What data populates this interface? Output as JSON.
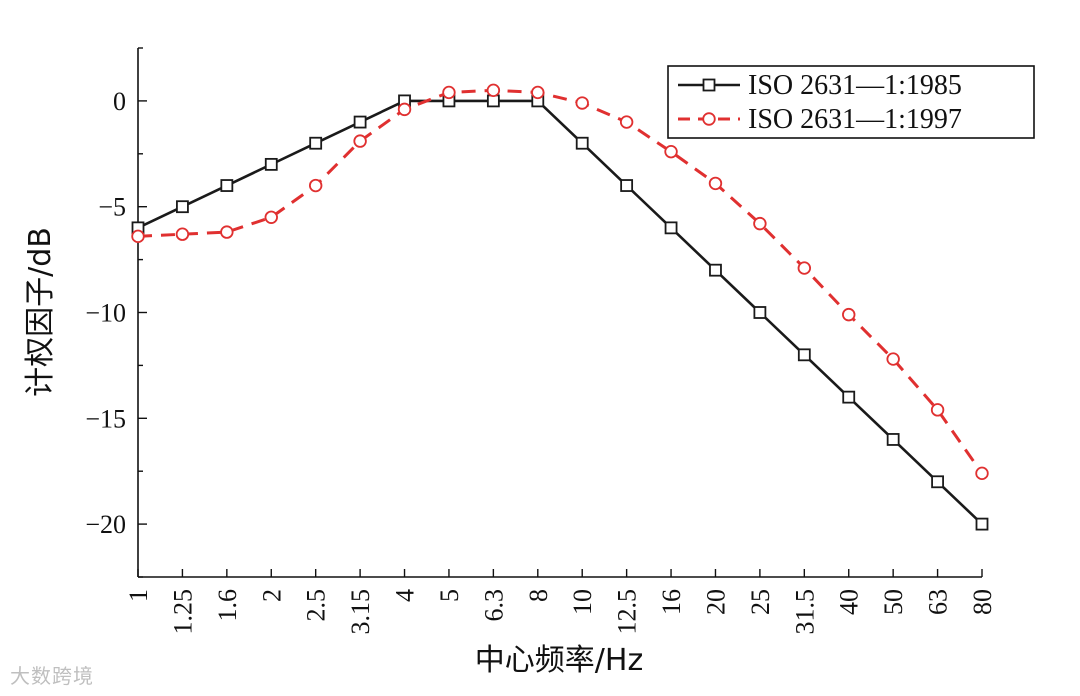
{
  "chart_data": {
    "type": "line",
    "title": "",
    "xlabel": "中心频率/Hz",
    "ylabel": "计权因子/dB",
    "categories": [
      "1",
      "1.25",
      "1.6",
      "2",
      "2.5",
      "3.15",
      "4",
      "5",
      "6.3",
      "8",
      "10",
      "12.5",
      "16",
      "20",
      "25",
      "31.5",
      "40",
      "50",
      "63",
      "80"
    ],
    "ylim": [
      -22.5,
      2.5
    ],
    "yticks": [
      0,
      -5,
      -10,
      -15,
      -20
    ],
    "ytick_labels": [
      "0",
      "−5",
      "−10",
      "−15",
      "−20"
    ],
    "legend_position": "top-right",
    "series": [
      {
        "name": "ISO 2631—1:1985",
        "color": "#1a1a1a",
        "line_style": "solid",
        "marker": "square",
        "values": [
          -6,
          -5,
          -4,
          -3,
          -2,
          -1,
          0,
          0,
          0,
          0,
          -2,
          -4,
          -6,
          -8,
          -10,
          -12,
          -14,
          -16,
          -18,
          -20
        ]
      },
      {
        "name": "ISO 2631—1:1997",
        "color": "#e03030",
        "line_style": "dashed",
        "marker": "circle",
        "values": [
          -6.4,
          -6.3,
          -6.2,
          -5.5,
          -4,
          -1.9,
          -0.4,
          0.4,
          0.5,
          0.4,
          -0.1,
          -1,
          -2.4,
          -3.9,
          -5.8,
          -7.9,
          -10.1,
          -12.2,
          -14.6,
          -17.6
        ]
      }
    ]
  },
  "watermark": "大数跨境"
}
